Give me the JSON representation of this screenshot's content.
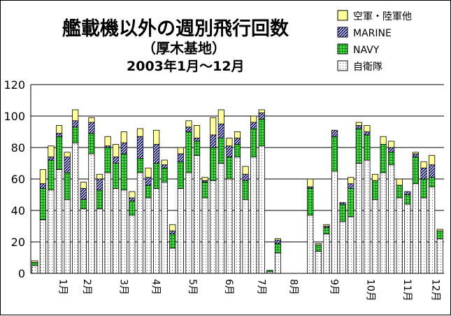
{
  "chart_data": {
    "type": "bar",
    "stacked": true,
    "title": "艦載機以外の週別飛行回数",
    "subtitle": "（厚木基地）",
    "period": "2003年1月～12月",
    "ylim": [
      0,
      120
    ],
    "yticks": [
      0,
      20,
      40,
      60,
      80,
      100,
      120
    ],
    "grid": true,
    "legend_position": "top-right",
    "legend_order": [
      "airforce_army",
      "marine",
      "navy",
      "jsdf"
    ],
    "series": [
      {
        "key": "airforce_army",
        "name": "空軍・陸軍他",
        "color": "#ffff99",
        "pattern": "plain"
      },
      {
        "key": "marine",
        "name": "MARINE",
        "color": "#000080",
        "pattern": "diagonal"
      },
      {
        "key": "navy",
        "name": "NAVY",
        "color": "#33cc33",
        "pattern": "grid"
      },
      {
        "key": "jsdf",
        "name": "自衛隊",
        "color": "#ffffff",
        "pattern": "dots"
      }
    ],
    "weeks": [
      {
        "jsdf": 5,
        "navy": 2,
        "marine": 0,
        "airforce_army": 1
      },
      {
        "jsdf": 34,
        "navy": 20,
        "marine": 3,
        "airforce_army": 9
      },
      {
        "jsdf": 53,
        "navy": 19,
        "marine": 2,
        "airforce_army": 7
      },
      {
        "jsdf": 66,
        "navy": 21,
        "marine": 2,
        "airforce_army": 5
      },
      {
        "jsdf": 47,
        "navy": 17,
        "marine": 10,
        "airforce_army": 3
      },
      {
        "jsdf": 83,
        "navy": 10,
        "marine": 4,
        "airforce_army": 7
      },
      {
        "jsdf": 41,
        "navy": 6,
        "marine": 7,
        "airforce_army": 4
      },
      {
        "jsdf": 76,
        "navy": 13,
        "marine": 7,
        "airforce_army": 3
      },
      {
        "jsdf": 41,
        "navy": 12,
        "marine": 7,
        "airforce_army": 3
      },
      {
        "jsdf": 64,
        "navy": 16,
        "marine": 1,
        "airforce_army": 6
      },
      {
        "jsdf": 54,
        "navy": 16,
        "marine": 4,
        "airforce_army": 8
      },
      {
        "jsdf": 53,
        "navy": 23,
        "marine": 7,
        "airforce_army": 7
      },
      {
        "jsdf": 37,
        "navy": 9,
        "marine": 2,
        "airforce_army": 4
      },
      {
        "jsdf": 64,
        "navy": 9,
        "marine": 14,
        "airforce_army": 5
      },
      {
        "jsdf": 48,
        "navy": 8,
        "marine": 5,
        "airforce_army": 6
      },
      {
        "jsdf": 54,
        "navy": 16,
        "marine": 12,
        "airforce_army": 9
      },
      {
        "jsdf": 58,
        "navy": 9,
        "marine": 2,
        "airforce_army": 3
      },
      {
        "jsdf": 16,
        "navy": 9,
        "marine": 2,
        "airforce_army": 4
      },
      {
        "jsdf": 54,
        "navy": 17,
        "marine": 5,
        "airforce_army": 4
      },
      {
        "jsdf": 64,
        "navy": 26,
        "marine": 3,
        "airforce_army": 4
      },
      {
        "jsdf": 75,
        "navy": 9,
        "marine": 2,
        "airforce_army": 8
      },
      {
        "jsdf": 48,
        "navy": 10,
        "marine": 1,
        "airforce_army": 2
      },
      {
        "jsdf": 59,
        "navy": 21,
        "marine": 8,
        "airforce_army": 11
      },
      {
        "jsdf": 70,
        "navy": 16,
        "marine": 9,
        "airforce_army": 9
      },
      {
        "jsdf": 60,
        "navy": 14,
        "marine": 7,
        "airforce_army": 5
      },
      {
        "jsdf": 74,
        "navy": 8,
        "marine": 4,
        "airforce_army": 4
      },
      {
        "jsdf": 47,
        "navy": 12,
        "marine": 4,
        "airforce_army": 5
      },
      {
        "jsdf": 74,
        "navy": 18,
        "marine": 4,
        "airforce_army": 4
      },
      {
        "jsdf": 81,
        "navy": 17,
        "marine": 4,
        "airforce_army": 2
      },
      {
        "jsdf": 1,
        "navy": 1,
        "marine": 0,
        "airforce_army": 0
      },
      {
        "jsdf": 13,
        "navy": 6,
        "marine": 2,
        "airforce_army": 1
      },
      {
        "jsdf": 0,
        "navy": 0,
        "marine": 0,
        "airforce_army": 0
      },
      {
        "jsdf": 0,
        "navy": 0,
        "marine": 0,
        "airforce_army": 0
      },
      {
        "jsdf": 0,
        "navy": 0,
        "marine": 0,
        "airforce_army": 0
      },
      {
        "jsdf": 37,
        "navy": 17,
        "marine": 1,
        "airforce_army": 5
      },
      {
        "jsdf": 14,
        "navy": 4,
        "marine": 0,
        "airforce_army": 1
      },
      {
        "jsdf": 25,
        "navy": 4,
        "marine": 1,
        "airforce_army": 1
      },
      {
        "jsdf": 65,
        "navy": 22,
        "marine": 4,
        "airforce_army": 0
      },
      {
        "jsdf": 33,
        "navy": 11,
        "marine": 1,
        "airforce_army": 0
      },
      {
        "jsdf": 36,
        "navy": 18,
        "marine": 3,
        "airforce_army": 4
      },
      {
        "jsdf": 70,
        "navy": 22,
        "marine": 2,
        "airforce_army": 2
      },
      {
        "jsdf": 72,
        "navy": 16,
        "marine": 2,
        "airforce_army": 4
      },
      {
        "jsdf": 47,
        "navy": 12,
        "marine": 0,
        "airforce_army": 4
      },
      {
        "jsdf": 64,
        "navy": 18,
        "marine": 0,
        "airforce_army": 5
      },
      {
        "jsdf": 69,
        "navy": 8,
        "marine": 3,
        "airforce_army": 4
      },
      {
        "jsdf": 48,
        "navy": 8,
        "marine": 0,
        "airforce_army": 4
      },
      {
        "jsdf": 44,
        "navy": 6,
        "marine": 2,
        "airforce_army": 0
      },
      {
        "jsdf": 57,
        "navy": 17,
        "marine": 2,
        "airforce_army": 1
      },
      {
        "jsdf": 48,
        "navy": 12,
        "marine": 7,
        "airforce_army": 4
      },
      {
        "jsdf": 55,
        "navy": 6,
        "marine": 8,
        "airforce_army": 6
      },
      {
        "jsdf": 22,
        "navy": 5,
        "marine": 0,
        "airforce_army": 1
      }
    ],
    "month_labels": [
      "1月",
      "2月",
      "3月",
      "4月",
      "5月",
      "6月",
      "7月",
      "8月",
      "9月",
      "10月",
      "11月",
      "12月"
    ],
    "month_label_week": [
      3.5,
      6.5,
      11,
      15,
      19.5,
      24,
      28,
      32,
      37,
      41.5,
      46,
      49.5
    ]
  }
}
